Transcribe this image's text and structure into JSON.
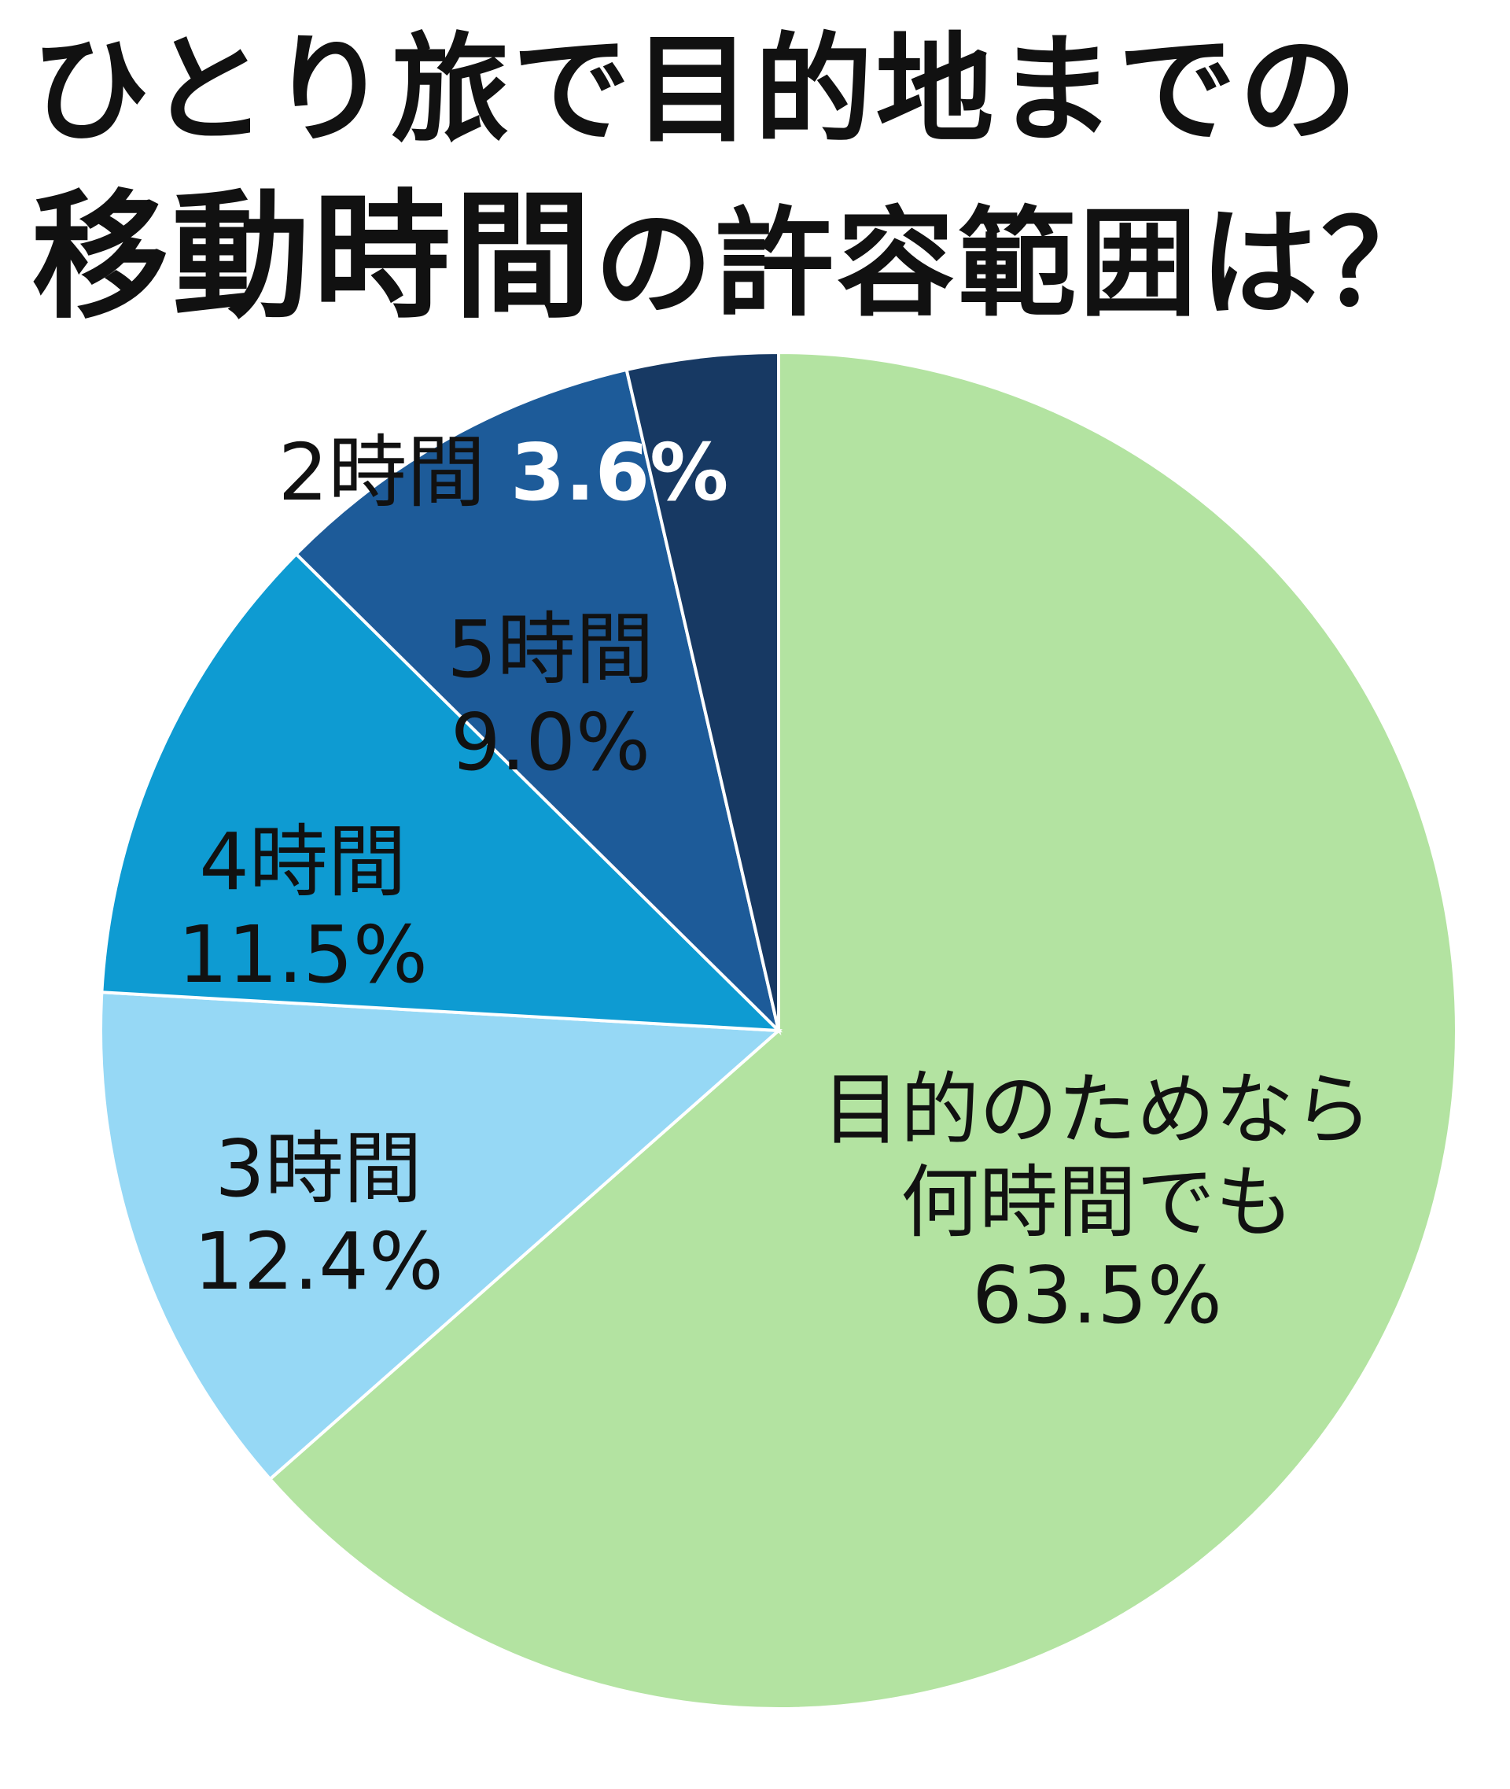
{
  "title": {
    "line1": "ひとり旅で目的地までの",
    "line2_emph": "移動時間",
    "line2_rest": "の許容範囲は？"
  },
  "chart_data": {
    "type": "pie",
    "title": "ひとり旅で目的地までの移動時間の許容範囲は？",
    "unit": "%",
    "start": "12 o'clock, clockwise",
    "slices": [
      {
        "label": "目的のためなら何時間でも",
        "label_lines": [
          "目的のためなら",
          "何時間でも"
        ],
        "value": 63.5,
        "value_text": "63.5%",
        "color": "#b3e3a1",
        "text_color": "#111111"
      },
      {
        "label": "3時間",
        "label_lines": [
          "3時間"
        ],
        "value": 12.4,
        "value_text": "12.4%",
        "color": "#96d8f5",
        "text_color": "#111111"
      },
      {
        "label": "4時間",
        "label_lines": [
          "4時間"
        ],
        "value": 11.5,
        "value_text": "11.5%",
        "color": "#0e9bd2",
        "text_color": "#111111"
      },
      {
        "label": "5時間",
        "label_lines": [
          "5時間"
        ],
        "value": 9.0,
        "value_text": "9.0%",
        "color": "#1d5b99",
        "text_color": "#111111"
      },
      {
        "label": "2時間",
        "label_lines": [
          "2時間"
        ],
        "value": 3.6,
        "value_text": "3.6%",
        "color": "#173963",
        "text_color": "#111111",
        "value_color": "#ffffff"
      }
    ]
  }
}
